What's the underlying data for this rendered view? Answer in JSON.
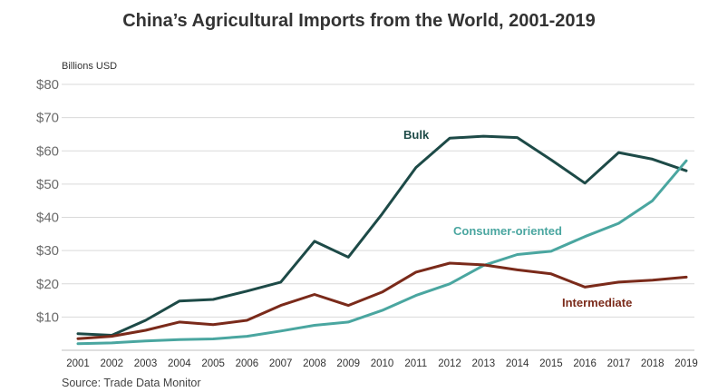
{
  "chart_data": {
    "type": "line",
    "title": "China’s Agricultural Imports from the World, 2001-2019",
    "ylabel": "Billions USD",
    "source": "Source: Trade Data Monitor",
    "ylim": [
      0,
      80
    ],
    "yticks": [
      10,
      20,
      30,
      40,
      50,
      60,
      70,
      80
    ],
    "ytick_labels": [
      "$10",
      "$20",
      "$30",
      "$40",
      "$50",
      "$60",
      "$70",
      "$80"
    ],
    "grid": "horizontal",
    "x": [
      "2001",
      "2002",
      "2003",
      "2004",
      "2005",
      "2006",
      "2007",
      "2008",
      "2009",
      "2010",
      "2011",
      "2012",
      "2013",
      "2014",
      "2015",
      "2016",
      "2017",
      "2018",
      "2019"
    ],
    "series": [
      {
        "name": "Bulk",
        "color": "#1d4a47",
        "values": [
          5,
          4.5,
          9,
          14.8,
          15.3,
          17.8,
          20.5,
          32.8,
          28,
          41,
          55,
          63.8,
          64.4,
          64,
          57.3,
          50.3,
          59.5,
          57.5,
          54
        ]
      },
      {
        "name": "Consumer-oriented",
        "color": "#4aa6a0",
        "values": [
          2,
          2.2,
          2.8,
          3.2,
          3.4,
          4.2,
          5.8,
          7.5,
          8.5,
          12,
          16.5,
          20,
          25.5,
          28.8,
          29.8,
          34.2,
          38.2,
          45,
          57
        ]
      },
      {
        "name": "Intermediate",
        "color": "#7a2a1a",
        "values": [
          3.5,
          4.2,
          6,
          8.5,
          7.7,
          9,
          13.5,
          16.8,
          13.5,
          17.5,
          23.5,
          26.2,
          25.7,
          24.2,
          23,
          19,
          20.5,
          21.1,
          22
        ]
      }
    ]
  }
}
